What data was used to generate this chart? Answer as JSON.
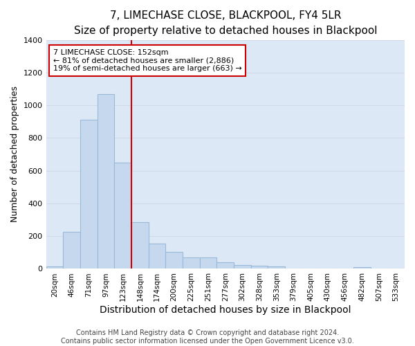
{
  "title": "7, LIMECHASE CLOSE, BLACKPOOL, FY4 5LR",
  "subtitle": "Size of property relative to detached houses in Blackpool",
  "xlabel": "Distribution of detached houses by size in Blackpool",
  "ylabel": "Number of detached properties",
  "footer_line1": "Contains HM Land Registry data © Crown copyright and database right 2024.",
  "footer_line2": "Contains public sector information licensed under the Open Government Licence v3.0.",
  "bar_labels": [
    "20sqm",
    "46sqm",
    "71sqm",
    "97sqm",
    "123sqm",
    "148sqm",
    "174sqm",
    "200sqm",
    "225sqm",
    "251sqm",
    "277sqm",
    "302sqm",
    "328sqm",
    "353sqm",
    "379sqm",
    "405sqm",
    "430sqm",
    "456sqm",
    "482sqm",
    "507sqm",
    "533sqm"
  ],
  "bar_values": [
    15,
    225,
    910,
    1070,
    650,
    285,
    155,
    105,
    70,
    70,
    40,
    25,
    20,
    15,
    0,
    0,
    0,
    0,
    12,
    0,
    0
  ],
  "bar_color": "#c5d8ee",
  "bar_edge_color": "#9ab8d8",
  "vline_color": "#cc0000",
  "vline_x": 4.5,
  "annotation_line1": "7 LIMECHASE CLOSE: 152sqm",
  "annotation_line2": "← 81% of detached houses are smaller (2,886)",
  "annotation_line3": "19% of semi-detached houses are larger (663) →",
  "annotation_box_edgecolor": "#cc0000",
  "ylim": [
    0,
    1400
  ],
  "yticks": [
    0,
    200,
    400,
    600,
    800,
    1000,
    1200,
    1400
  ],
  "grid_color": "#d0d8e8",
  "bg_color": "#dce8f5",
  "title_fontsize": 11,
  "subtitle_fontsize": 9.5,
  "annotation_fontsize": 8,
  "xlabel_fontsize": 10,
  "ylabel_fontsize": 9,
  "footer_fontsize": 7
}
